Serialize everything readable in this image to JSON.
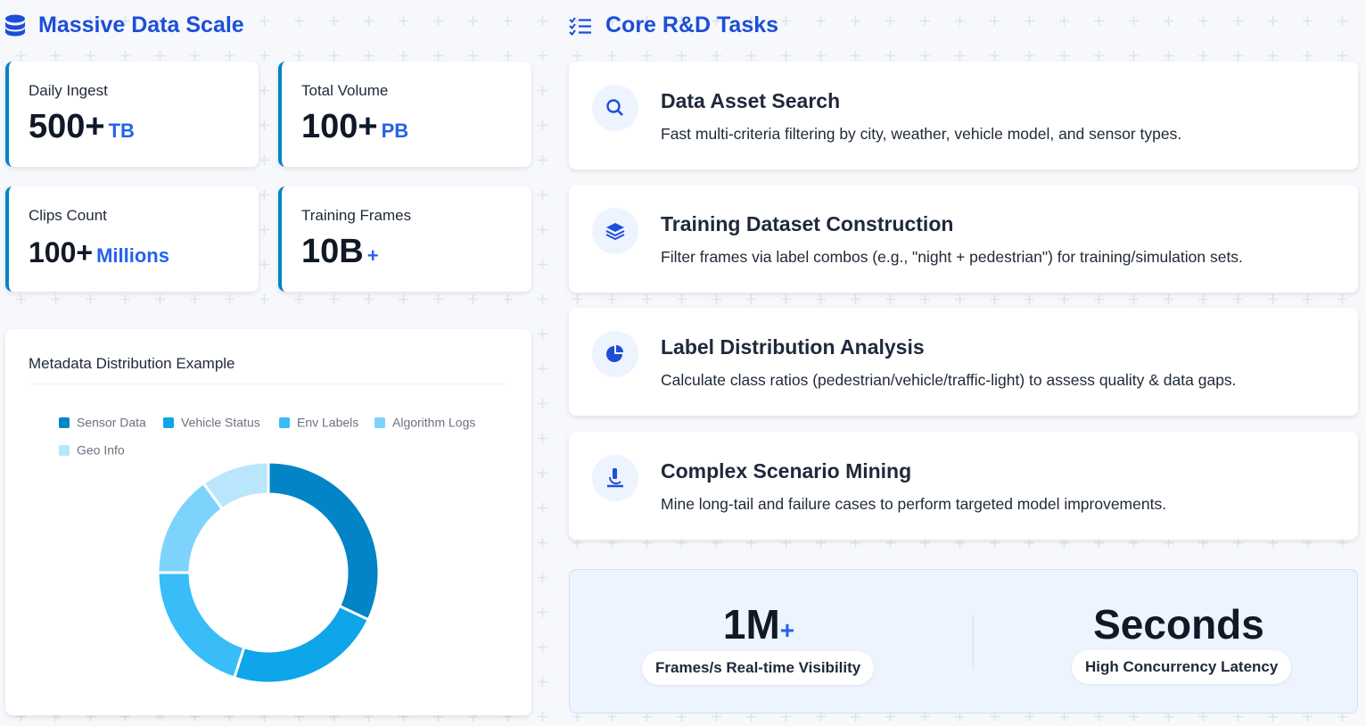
{
  "left": {
    "title": "Massive Data Scale",
    "stats": [
      {
        "label": "Daily Ingest",
        "value": "500+",
        "unit": "TB"
      },
      {
        "label": "Total Volume",
        "value": "100+",
        "unit": "PB"
      },
      {
        "label": "Clips Count",
        "value": "100+",
        "unit": "Millions"
      },
      {
        "label": "Training Frames",
        "value": "10B",
        "unit": "+"
      }
    ]
  },
  "chart_data": {
    "type": "pie",
    "title": "Metadata Distribution Example",
    "categories": [
      "Sensor Data",
      "Vehicle Status",
      "Env Labels",
      "Algorithm Logs",
      "Geo Info"
    ],
    "values": [
      32,
      23,
      20,
      15,
      10
    ],
    "colors": [
      "#0284c7",
      "#0ea5e9",
      "#38bdf8",
      "#7dd3fc",
      "#bae6fd"
    ]
  },
  "right": {
    "title": "Core R&D Tasks",
    "tasks": [
      {
        "title": "Data Asset Search",
        "description": "Fast multi-criteria filtering by city, weather, vehicle model, and sensor types."
      },
      {
        "title": "Training Dataset Construction",
        "description": "Filter frames via label combos (e.g., \"night + pedestrian\") for training/simulation sets."
      },
      {
        "title": "Label Distribution Analysis",
        "description": "Calculate class ratios (pedestrian/vehicle/traffic-light) to assess quality & data gaps."
      },
      {
        "title": "Complex Scenario Mining",
        "description": "Mine long-tail and failure cases to perform targeted model improvements."
      }
    ],
    "metrics": [
      {
        "value": "1M",
        "suffix": "+",
        "label": "Frames/s Real-time Visibility"
      },
      {
        "value": "Seconds",
        "label": "High Concurrency Latency"
      }
    ]
  }
}
